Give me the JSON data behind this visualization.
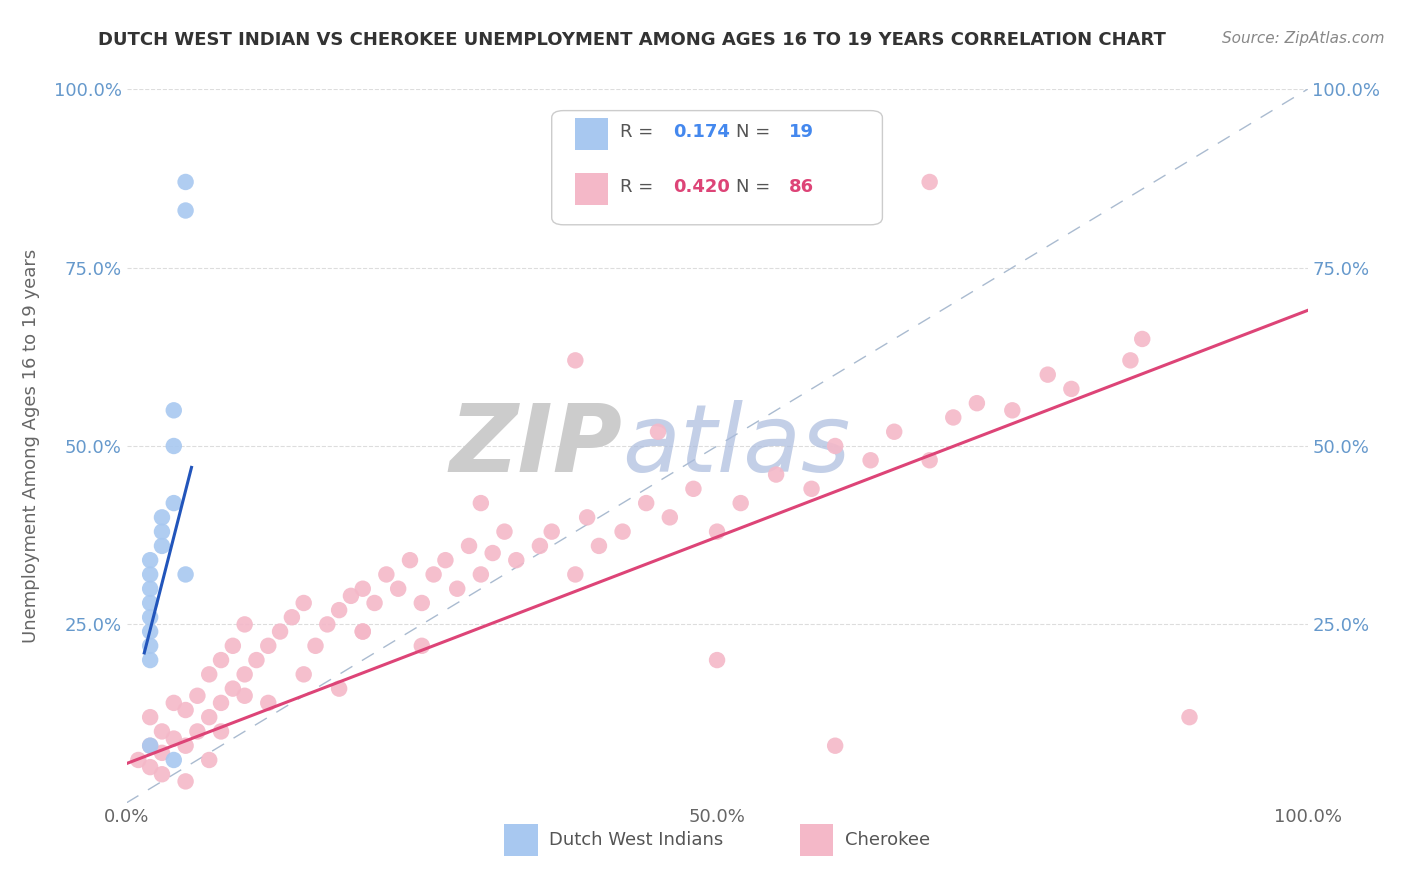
{
  "title": "DUTCH WEST INDIAN VS CHEROKEE UNEMPLOYMENT AMONG AGES 16 TO 19 YEARS CORRELATION CHART",
  "source": "Source: ZipAtlas.com",
  "ylabel": "Unemployment Among Ages 16 to 19 years",
  "xlim": [
    0,
    1
  ],
  "ylim": [
    0,
    1
  ],
  "xticks": [
    0,
    0.25,
    0.5,
    0.75,
    1.0
  ],
  "yticks": [
    0,
    0.25,
    0.5,
    0.75,
    1.0
  ],
  "xticklabels": [
    "0.0%",
    "",
    "50.0%",
    "",
    "100.0%"
  ],
  "yticklabels_left": [
    "",
    "25.0%",
    "50.0%",
    "75.0%",
    "100.0%"
  ],
  "yticklabels_right": [
    "",
    "25.0%",
    "50.0%",
    "75.0%",
    "100.0%"
  ],
  "legend_r1": "0.174",
  "legend_n1": "19",
  "legend_r2": "0.420",
  "legend_n2": "86",
  "blue_color": "#a8c8f0",
  "pink_color": "#f4b8c8",
  "blue_line_color": "#2255bb",
  "pink_line_color": "#dd4477",
  "diag_color": "#aabbd0",
  "watermark_zip": "ZIP",
  "watermark_atlas": "atlas",
  "watermark_color_zip": "#cccccc",
  "watermark_color_atlas": "#aabbdd",
  "grid_color": "#dddddd",
  "title_color": "#333333",
  "source_color": "#888888",
  "label_color": "#666666",
  "tick_color_right": "#6699cc",
  "blue_x": [
    0.02,
    0.02,
    0.02,
    0.02,
    0.02,
    0.02,
    0.02,
    0.02,
    0.03,
    0.03,
    0.03,
    0.04,
    0.04,
    0.04,
    0.05,
    0.05,
    0.05,
    0.02,
    0.04
  ],
  "blue_y": [
    0.2,
    0.22,
    0.24,
    0.26,
    0.28,
    0.3,
    0.32,
    0.34,
    0.36,
    0.38,
    0.4,
    0.5,
    0.55,
    0.42,
    0.83,
    0.87,
    0.32,
    0.08,
    0.06
  ],
  "pink_x": [
    0.01,
    0.02,
    0.02,
    0.02,
    0.03,
    0.03,
    0.04,
    0.04,
    0.05,
    0.05,
    0.06,
    0.06,
    0.07,
    0.07,
    0.08,
    0.08,
    0.09,
    0.09,
    0.1,
    0.1,
    0.11,
    0.12,
    0.13,
    0.14,
    0.15,
    0.16,
    0.17,
    0.18,
    0.19,
    0.2,
    0.2,
    0.21,
    0.22,
    0.23,
    0.24,
    0.25,
    0.26,
    0.27,
    0.28,
    0.29,
    0.3,
    0.31,
    0.32,
    0.33,
    0.35,
    0.36,
    0.38,
    0.39,
    0.4,
    0.42,
    0.44,
    0.46,
    0.48,
    0.5,
    0.52,
    0.55,
    0.58,
    0.6,
    0.63,
    0.65,
    0.68,
    0.7,
    0.72,
    0.75,
    0.78,
    0.8,
    0.85,
    0.86,
    0.45,
    0.3,
    0.55,
    0.68,
    0.25,
    0.15,
    0.1,
    0.2,
    0.12,
    0.08,
    0.5,
    0.9,
    0.6,
    0.38,
    0.18,
    0.05,
    0.07,
    0.03
  ],
  "pink_y": [
    0.06,
    0.05,
    0.08,
    0.12,
    0.07,
    0.1,
    0.09,
    0.14,
    0.08,
    0.13,
    0.1,
    0.15,
    0.12,
    0.18,
    0.14,
    0.2,
    0.16,
    0.22,
    0.18,
    0.25,
    0.2,
    0.22,
    0.24,
    0.26,
    0.28,
    0.22,
    0.25,
    0.27,
    0.29,
    0.24,
    0.3,
    0.28,
    0.32,
    0.3,
    0.34,
    0.28,
    0.32,
    0.34,
    0.3,
    0.36,
    0.32,
    0.35,
    0.38,
    0.34,
    0.36,
    0.38,
    0.32,
    0.4,
    0.36,
    0.38,
    0.42,
    0.4,
    0.44,
    0.38,
    0.42,
    0.46,
    0.44,
    0.5,
    0.48,
    0.52,
    0.48,
    0.54,
    0.56,
    0.55,
    0.6,
    0.58,
    0.62,
    0.65,
    0.52,
    0.42,
    0.85,
    0.87,
    0.22,
    0.18,
    0.15,
    0.24,
    0.14,
    0.1,
    0.2,
    0.12,
    0.08,
    0.62,
    0.16,
    0.03,
    0.06,
    0.04
  ],
  "blue_line_x": [
    0.015,
    0.055
  ],
  "blue_line_y": [
    0.21,
    0.47
  ],
  "pink_line_x": [
    0.0,
    1.0
  ],
  "pink_line_y": [
    0.055,
    0.69
  ]
}
